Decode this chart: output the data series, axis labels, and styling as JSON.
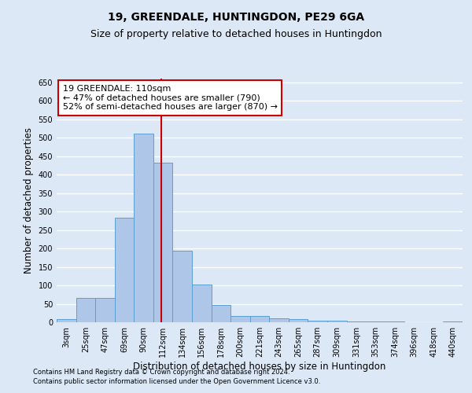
{
  "title1": "19, GREENDALE, HUNTINGDON, PE29 6GA",
  "title2": "Size of property relative to detached houses in Huntingdon",
  "xlabel": "Distribution of detached houses by size in Huntingdon",
  "ylabel": "Number of detached properties",
  "annotation_line1": "19 GREENDALE: 110sqm",
  "annotation_line2": "← 47% of detached houses are smaller (790)",
  "annotation_line3": "52% of semi-detached houses are larger (870) →",
  "footnote1": "Contains HM Land Registry data © Crown copyright and database right 2024.",
  "footnote2": "Contains public sector information licensed under the Open Government Licence v3.0.",
  "categories": [
    "3sqm",
    "25sqm",
    "47sqm",
    "69sqm",
    "90sqm",
    "112sqm",
    "134sqm",
    "156sqm",
    "178sqm",
    "200sqm",
    "221sqm",
    "243sqm",
    "265sqm",
    "287sqm",
    "309sqm",
    "331sqm",
    "353sqm",
    "374sqm",
    "396sqm",
    "418sqm",
    "440sqm"
  ],
  "values": [
    8,
    65,
    65,
    283,
    510,
    433,
    193,
    103,
    47,
    18,
    18,
    10,
    8,
    5,
    5,
    2,
    2,
    2,
    0,
    0,
    3
  ],
  "bar_color": "#aec6e8",
  "bar_edge_color": "#5a9fd4",
  "bar_width": 1.0,
  "vline_color": "#cc0000",
  "vline_pos": 4.9,
  "ylim": [
    0,
    660
  ],
  "yticks": [
    0,
    50,
    100,
    150,
    200,
    250,
    300,
    350,
    400,
    450,
    500,
    550,
    600,
    650
  ],
  "background_color": "#dce8f5",
  "plot_bg_color": "#dce8f5",
  "grid_color": "#ffffff",
  "title1_fontsize": 10,
  "title2_fontsize": 9,
  "axis_label_fontsize": 8.5,
  "tick_fontsize": 7,
  "annotation_box_color": "#ffffff",
  "annotation_box_edge": "#cc0000",
  "annotation_fontsize": 8,
  "footnote_fontsize": 6
}
